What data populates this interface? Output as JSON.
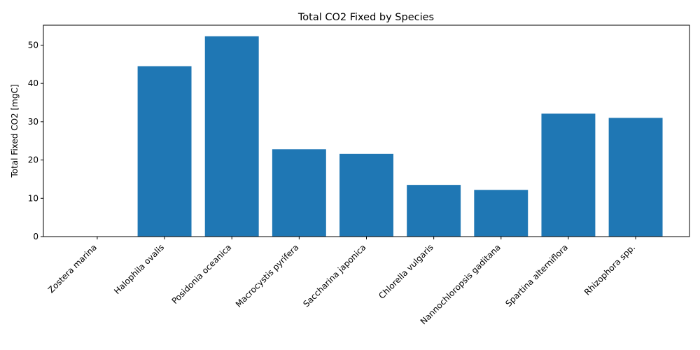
{
  "chart_data": {
    "type": "bar",
    "title": "Total CO2 Fixed by Species",
    "xlabel": "",
    "ylabel": "Total Fixed CO2 [mgC]",
    "categories": [
      "Zostera marina",
      "Halophila ovalis",
      "Posidonia oceanica",
      "Macrocystis pyrifera",
      "Saccharina japonica",
      "Chlorella vulgaris",
      "Nannochloropsis gaditana",
      "Spartina alterniflora",
      "Rhizophora spp."
    ],
    "values": [
      0,
      44.5,
      52.3,
      22.8,
      21.6,
      13.5,
      12.2,
      32.1,
      31.0
    ],
    "ylim": [
      0,
      55.2
    ],
    "yticks": [
      0,
      10,
      20,
      30,
      40,
      50
    ],
    "bar_color": "#1f77b4",
    "grid": false,
    "legend": "none"
  }
}
